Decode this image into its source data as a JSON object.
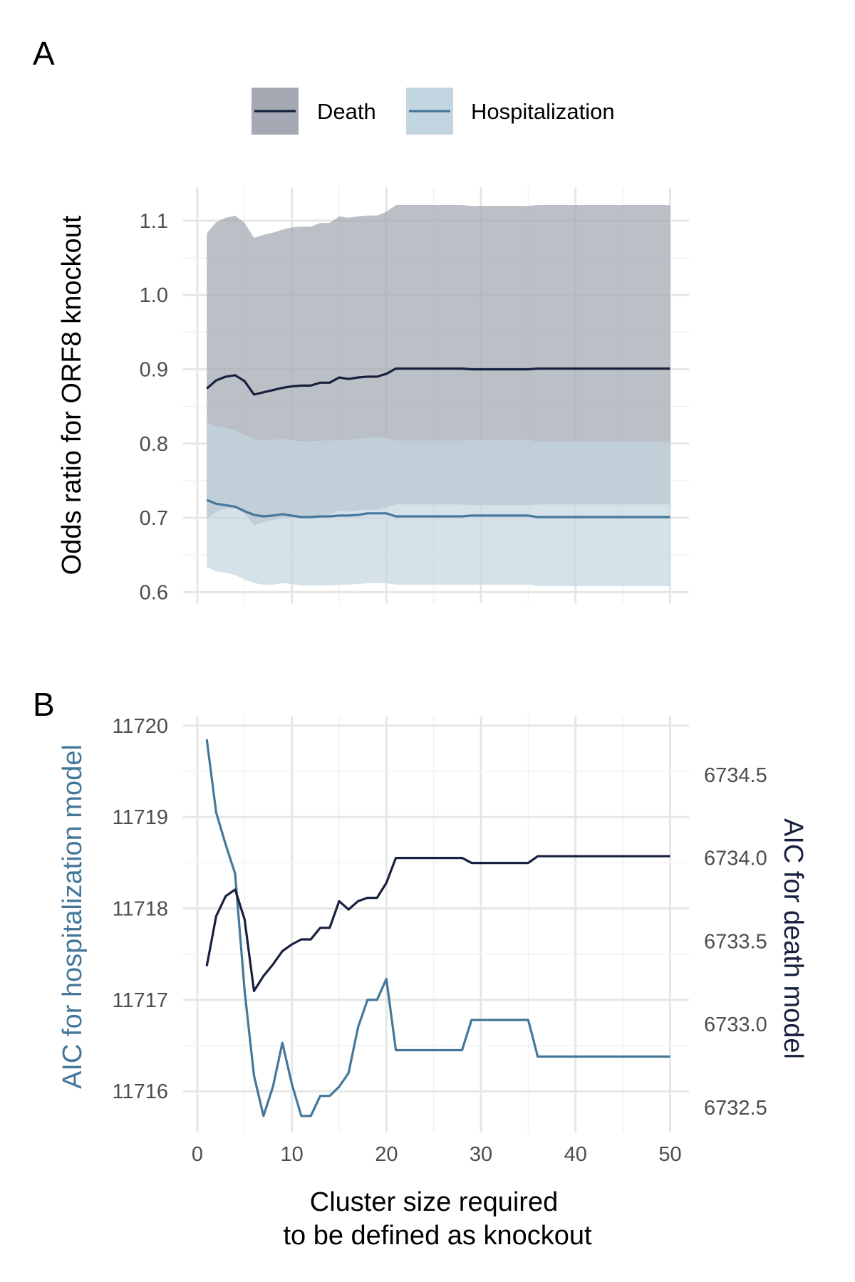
{
  "chart_data": [
    {
      "panel": "A",
      "type": "line",
      "ylabel": "Odds ratio for ORF8 knockout",
      "ylim": [
        0.585,
        1.145
      ],
      "xlim": [
        -1.5,
        52
      ],
      "yticks": [
        0.6,
        0.7,
        0.8,
        0.9,
        1.0,
        1.1
      ],
      "ytick_labels": [
        "0.6",
        "0.7",
        "0.8",
        "0.9",
        "1.0",
        "1.1"
      ],
      "grid": true,
      "legend_position": "top",
      "legend": [
        "Death",
        "Hospitalization"
      ],
      "series": [
        {
          "name": "Death",
          "color": "#17213f",
          "ribbon_color": "#a4a9b3",
          "x": [
            1,
            2,
            3,
            4,
            5,
            6,
            7,
            8,
            9,
            10,
            11,
            12,
            13,
            14,
            15,
            16,
            17,
            18,
            19,
            20,
            21,
            22,
            23,
            24,
            25,
            26,
            27,
            28,
            29,
            30,
            31,
            32,
            33,
            34,
            35,
            36,
            37,
            38,
            39,
            40,
            41,
            42,
            43,
            44,
            45,
            46,
            47,
            48,
            49,
            50
          ],
          "y": [
            0.874,
            0.885,
            0.89,
            0.892,
            0.884,
            0.866,
            0.869,
            0.872,
            0.875,
            0.877,
            0.878,
            0.878,
            0.882,
            0.882,
            0.889,
            0.887,
            0.889,
            0.89,
            0.89,
            0.894,
            0.901,
            0.901,
            0.901,
            0.901,
            0.901,
            0.901,
            0.901,
            0.901,
            0.9,
            0.9,
            0.9,
            0.9,
            0.9,
            0.9,
            0.9,
            0.901,
            0.901,
            0.901,
            0.901,
            0.901,
            0.901,
            0.901,
            0.901,
            0.901,
            0.901,
            0.901,
            0.901,
            0.901,
            0.901,
            0.901
          ],
          "lower": [
            0.699,
            0.708,
            0.712,
            0.713,
            0.706,
            0.69,
            0.694,
            0.697,
            0.699,
            0.7,
            0.701,
            0.701,
            0.704,
            0.704,
            0.71,
            0.708,
            0.71,
            0.711,
            0.711,
            0.714,
            0.718,
            0.718,
            0.718,
            0.718,
            0.718,
            0.718,
            0.718,
            0.718,
            0.717,
            0.717,
            0.717,
            0.717,
            0.717,
            0.717,
            0.717,
            0.718,
            0.718,
            0.718,
            0.718,
            0.718,
            0.718,
            0.718,
            0.718,
            0.718,
            0.718,
            0.718,
            0.718,
            0.718,
            0.718,
            0.718
          ],
          "upper": [
            1.083,
            1.098,
            1.104,
            1.107,
            1.097,
            1.077,
            1.081,
            1.084,
            1.088,
            1.091,
            1.092,
            1.092,
            1.097,
            1.097,
            1.106,
            1.104,
            1.106,
            1.107,
            1.107,
            1.112,
            1.121,
            1.121,
            1.121,
            1.121,
            1.121,
            1.121,
            1.121,
            1.121,
            1.12,
            1.12,
            1.12,
            1.12,
            1.12,
            1.12,
            1.12,
            1.121,
            1.121,
            1.121,
            1.121,
            1.121,
            1.121,
            1.121,
            1.121,
            1.121,
            1.121,
            1.121,
            1.121,
            1.121,
            1.121,
            1.121
          ]
        },
        {
          "name": "Hospitalization",
          "color": "#447799",
          "ribbon_color": "#c3d5e0",
          "x": [
            1,
            2,
            3,
            4,
            5,
            6,
            7,
            8,
            9,
            10,
            11,
            12,
            13,
            14,
            15,
            16,
            17,
            18,
            19,
            20,
            21,
            22,
            23,
            24,
            25,
            26,
            27,
            28,
            29,
            30,
            31,
            32,
            33,
            34,
            35,
            36,
            37,
            38,
            39,
            40,
            41,
            42,
            43,
            44,
            45,
            46,
            47,
            48,
            49,
            50
          ],
          "y": [
            0.724,
            0.719,
            0.717,
            0.715,
            0.709,
            0.704,
            0.702,
            0.703,
            0.705,
            0.703,
            0.701,
            0.701,
            0.702,
            0.702,
            0.703,
            0.703,
            0.704,
            0.706,
            0.706,
            0.706,
            0.702,
            0.702,
            0.702,
            0.702,
            0.702,
            0.702,
            0.702,
            0.702,
            0.703,
            0.703,
            0.703,
            0.703,
            0.703,
            0.703,
            0.703,
            0.701,
            0.701,
            0.701,
            0.701,
            0.701,
            0.701,
            0.701,
            0.701,
            0.701,
            0.701,
            0.701,
            0.701,
            0.701,
            0.701,
            0.701
          ],
          "lower": [
            0.634,
            0.628,
            0.626,
            0.623,
            0.617,
            0.612,
            0.61,
            0.61,
            0.612,
            0.611,
            0.609,
            0.609,
            0.609,
            0.609,
            0.61,
            0.61,
            0.611,
            0.612,
            0.612,
            0.612,
            0.61,
            0.61,
            0.61,
            0.61,
            0.61,
            0.61,
            0.61,
            0.61,
            0.61,
            0.61,
            0.61,
            0.61,
            0.61,
            0.61,
            0.61,
            0.608,
            0.608,
            0.608,
            0.608,
            0.608,
            0.608,
            0.608,
            0.608,
            0.608,
            0.608,
            0.608,
            0.608,
            0.608,
            0.608,
            0.608
          ],
          "upper": [
            0.829,
            0.823,
            0.821,
            0.818,
            0.812,
            0.806,
            0.804,
            0.805,
            0.807,
            0.805,
            0.803,
            0.803,
            0.804,
            0.804,
            0.805,
            0.805,
            0.806,
            0.808,
            0.808,
            0.808,
            0.804,
            0.804,
            0.804,
            0.804,
            0.804,
            0.804,
            0.804,
            0.804,
            0.805,
            0.805,
            0.805,
            0.805,
            0.805,
            0.805,
            0.805,
            0.803,
            0.803,
            0.803,
            0.803,
            0.803,
            0.803,
            0.803,
            0.803,
            0.803,
            0.803,
            0.803,
            0.803,
            0.803,
            0.803,
            0.803
          ]
        }
      ]
    },
    {
      "panel": "B",
      "type": "line",
      "xlabel": "Cluster size required to be defined as knockout",
      "xlabel_lines": [
        "Cluster size required",
        "to be defined as knockout"
      ],
      "xlim": [
        -1.5,
        52
      ],
      "xticks": [
        0,
        10,
        20,
        30,
        40,
        50
      ],
      "xtick_labels": [
        "0",
        "10",
        "20",
        "30",
        "40",
        "50"
      ],
      "ylabel_left": "AIC for hospitalization model",
      "ylim_left": [
        11715.55,
        11720.1
      ],
      "yticks_left": [
        11716,
        11717,
        11718,
        11719,
        11720
      ],
      "ytick_labels_left": [
        "11716",
        "11717",
        "11718",
        "11719",
        "11720"
      ],
      "ylabel_right": "AIC for death model",
      "ylim_right": [
        6732.35,
        6734.85
      ],
      "yticks_right": [
        6732.5,
        6733.0,
        6733.5,
        6734.0,
        6734.5
      ],
      "ytick_labels_right": [
        "6732.5",
        "6733.0",
        "6733.5",
        "6734.0",
        "6734.5"
      ],
      "grid": true,
      "series": [
        {
          "name": "Hospitalization",
          "axis": "left",
          "color": "#447799",
          "x": [
            1,
            2,
            3,
            4,
            5,
            6,
            7,
            8,
            9,
            10,
            11,
            12,
            13,
            14,
            15,
            16,
            17,
            18,
            19,
            20,
            21,
            22,
            23,
            24,
            25,
            26,
            27,
            28,
            29,
            30,
            31,
            32,
            33,
            34,
            35,
            36,
            37,
            38,
            39,
            40,
            41,
            42,
            43,
            44,
            45,
            46,
            47,
            48,
            49,
            50
          ],
          "y": [
            11719.85,
            11719.05,
            11718.7,
            11718.38,
            11717.1,
            11716.17,
            11715.73,
            11716.05,
            11716.53,
            11716.08,
            11715.73,
            11715.73,
            11715.95,
            11715.95,
            11716.05,
            11716.2,
            11716.7,
            11717.0,
            11717.0,
            11717.23,
            11716.45,
            11716.45,
            11716.45,
            11716.45,
            11716.45,
            11716.45,
            11716.45,
            11716.45,
            11716.78,
            11716.78,
            11716.78,
            11716.78,
            11716.78,
            11716.78,
            11716.78,
            11716.38,
            11716.38,
            11716.38,
            11716.38,
            11716.38,
            11716.38,
            11716.38,
            11716.38,
            11716.38,
            11716.38,
            11716.38,
            11716.38,
            11716.38,
            11716.38,
            11716.38
          ]
        },
        {
          "name": "Death",
          "axis": "right",
          "color": "#17213f",
          "x": [
            1,
            2,
            3,
            4,
            5,
            6,
            7,
            8,
            9,
            10,
            11,
            12,
            13,
            14,
            15,
            16,
            17,
            18,
            19,
            20,
            21,
            22,
            23,
            24,
            25,
            26,
            27,
            28,
            29,
            30,
            31,
            32,
            33,
            34,
            35,
            36,
            37,
            38,
            39,
            40,
            41,
            42,
            43,
            44,
            45,
            46,
            47,
            48,
            49,
            50
          ],
          "y": [
            6733.35,
            6733.65,
            6733.77,
            6733.81,
            6733.63,
            6733.2,
            6733.29,
            6733.36,
            6733.44,
            6733.48,
            6733.51,
            6733.51,
            6733.58,
            6733.58,
            6733.74,
            6733.69,
            6733.74,
            6733.76,
            6733.76,
            6733.85,
            6734.0,
            6734.0,
            6734.0,
            6734.0,
            6734.0,
            6734.0,
            6734.0,
            6734.0,
            6733.97,
            6733.97,
            6733.97,
            6733.97,
            6733.97,
            6733.97,
            6733.97,
            6734.01,
            6734.01,
            6734.01,
            6734.01,
            6734.01,
            6734.01,
            6734.01,
            6734.01,
            6734.01,
            6734.01,
            6734.01,
            6734.01,
            6734.01,
            6734.01,
            6734.01
          ]
        }
      ]
    }
  ],
  "panels": {
    "a_label": "A",
    "b_label": "B"
  },
  "legend": {
    "death_label": "Death",
    "hosp_label": "Hospitalization"
  },
  "axes": {
    "a_ylabel": "Odds ratio for ORF8 knockout",
    "b_ylabel_left": "AIC for hospitalization model",
    "b_ylabel_right": "AIC for death model",
    "b_xlabel_line1": "Cluster size required",
    "b_xlabel_line2": "to be defined as knockout"
  },
  "colors": {
    "death": "#17213f",
    "hosp": "#447799",
    "death_ribbon": "#a4a9b3",
    "hosp_ribbon": "#c3d5e0",
    "grid_major": "#e6e6e6",
    "grid_minor": "#f2f2f2"
  }
}
